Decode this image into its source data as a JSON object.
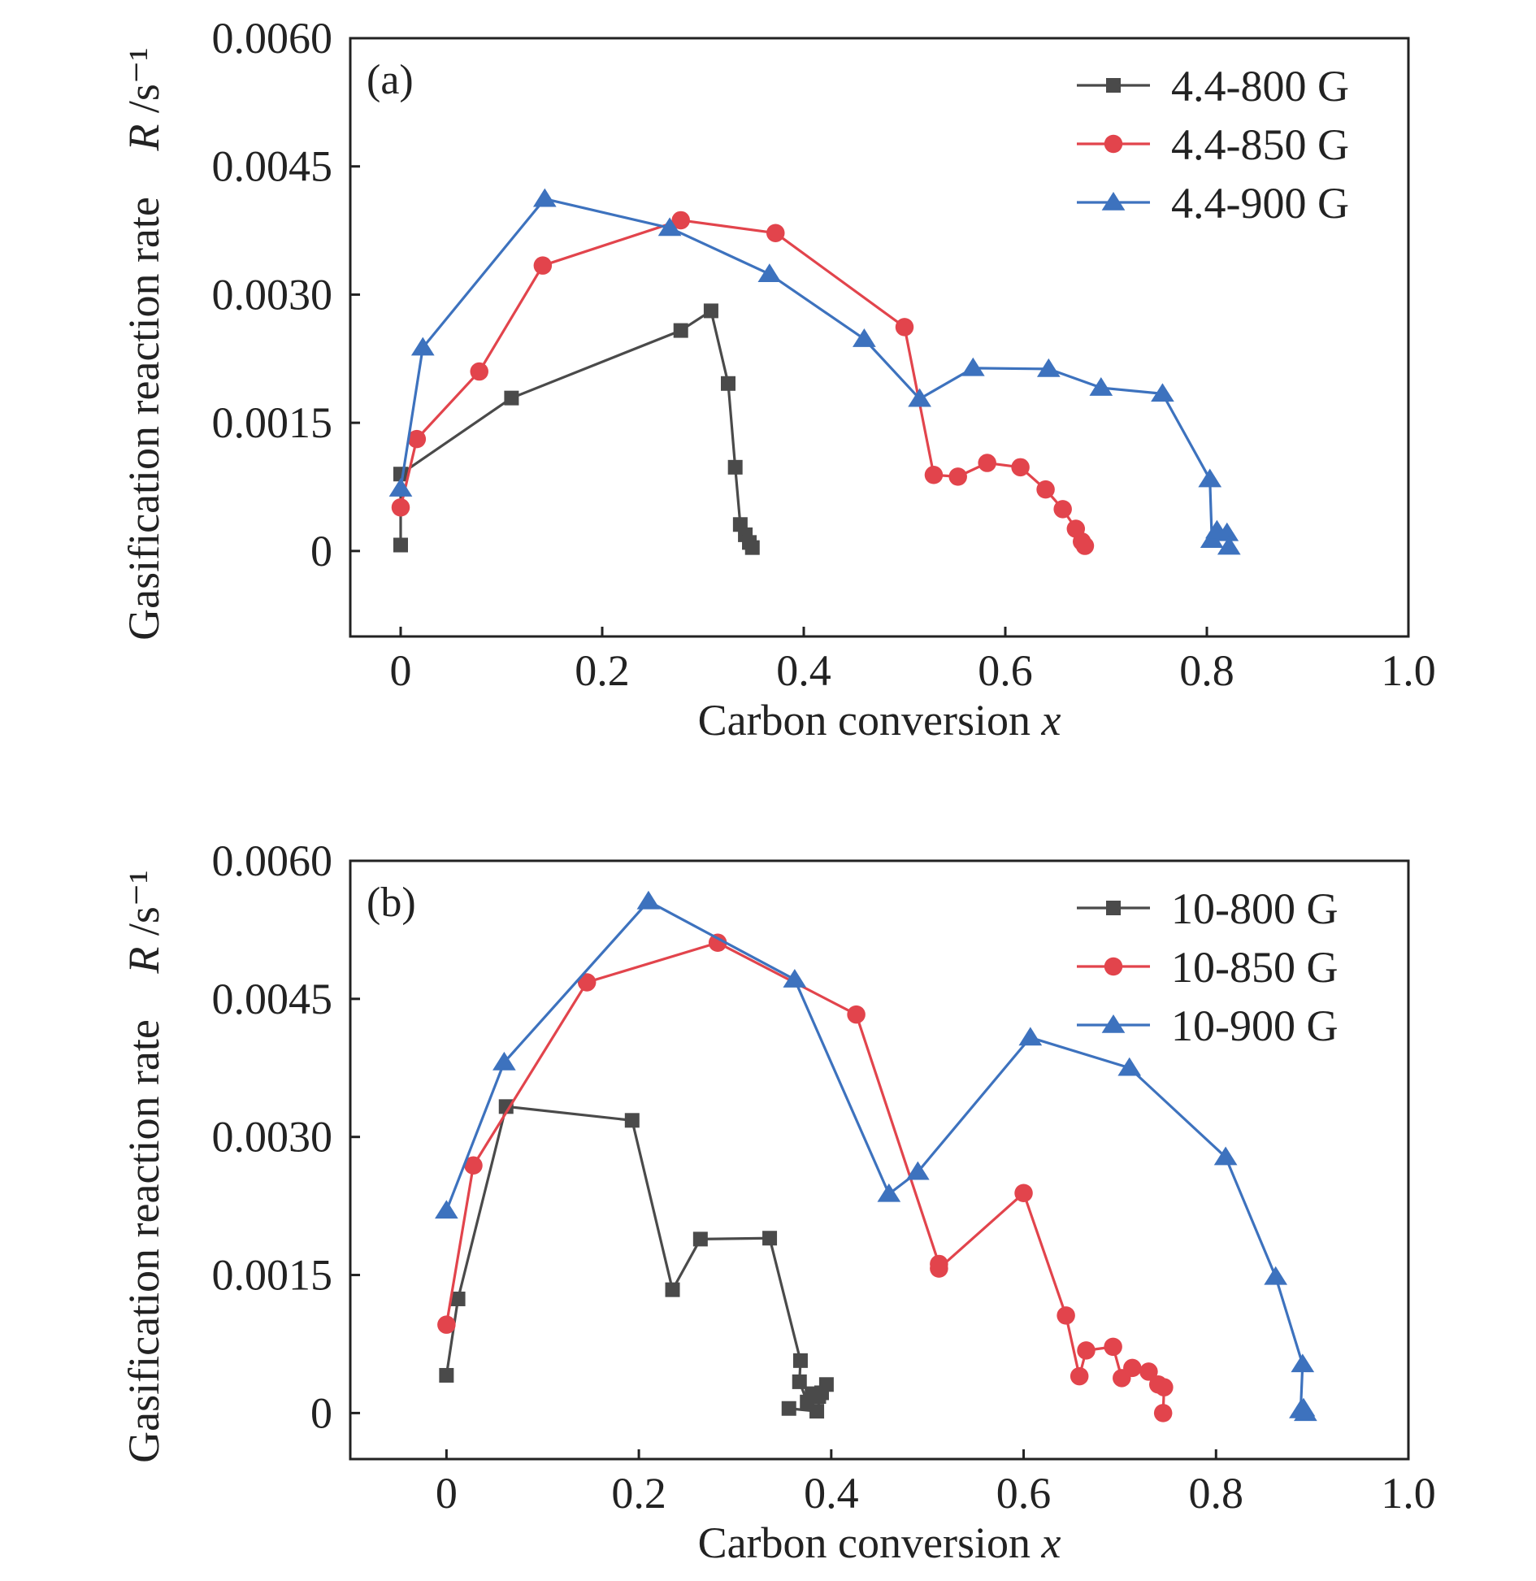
{
  "figure": {
    "y_axis_title": "Gasification reaction rate",
    "y_axis_unit": "R /s⁻¹",
    "x_axis_title": "Carbon conversion x"
  },
  "chart_data": [
    {
      "type": "line",
      "panel_label": "(a)",
      "xlabel": "Carbon conversion x",
      "ylabel": "Gasification reaction rate R /s⁻¹",
      "xlim": [
        -0.05,
        1.0
      ],
      "ylim": [
        -0.001,
        0.006
      ],
      "xticks": [
        0,
        0.2,
        0.4,
        0.6,
        0.8,
        1.0
      ],
      "xtick_labels": [
        "0",
        "0.2",
        "0.4",
        "0.6",
        "0.8",
        "1.0"
      ],
      "yticks": [
        0,
        0.0015,
        0.003,
        0.0045,
        0.006
      ],
      "ytick_labels": [
        "0",
        "0.0015",
        "0.0030",
        "0.0045",
        "0.0060"
      ],
      "legend_position": "top-right",
      "grid": false,
      "series": [
        {
          "name": "4.4-800 G",
          "color": "#4a4a4a",
          "marker": "square",
          "x": [
            0.0,
            0.0,
            0.11,
            0.278,
            0.308,
            0.325,
            0.332,
            0.337,
            0.342,
            0.346,
            0.349
          ],
          "y": [
            7e-05,
            0.0009,
            0.00179,
            0.00258,
            0.00281,
            0.00196,
            0.00098,
            0.00031,
            0.00019,
            0.0001,
            4e-05
          ]
        },
        {
          "name": "4.4-850 G",
          "color": "#e2444c",
          "marker": "circle",
          "x": [
            0.0,
            0.016,
            0.078,
            0.141,
            0.278,
            0.372,
            0.5,
            0.529,
            0.553,
            0.582,
            0.615,
            0.64,
            0.657,
            0.67,
            0.676,
            0.679
          ],
          "y": [
            0.00051,
            0.00131,
            0.0021,
            0.00334,
            0.00387,
            0.00372,
            0.00262,
            0.00089,
            0.00087,
            0.00103,
            0.00098,
            0.00072,
            0.00049,
            0.00026,
            0.00011,
            6e-05
          ]
        },
        {
          "name": "4.4-900 G",
          "color": "#3d72be",
          "marker": "triangle",
          "x": [
            0.0,
            0.022,
            0.143,
            0.267,
            0.366,
            0.46,
            0.515,
            0.568,
            0.643,
            0.695,
            0.756,
            0.803,
            0.805,
            0.81,
            0.82,
            0.822
          ],
          "y": [
            0.00073,
            0.00238,
            0.00412,
            0.00378,
            0.00324,
            0.00248,
            0.00178,
            0.00214,
            0.00213,
            0.00191,
            0.00184,
            0.00084,
            0.00013,
            0.00024,
            0.00021,
            5e-05
          ]
        }
      ]
    },
    {
      "type": "line",
      "panel_label": "(b)",
      "xlabel": "Carbon conversion x",
      "ylabel": "Gasification reaction rate R /s⁻¹",
      "xlim": [
        -0.1,
        1.0
      ],
      "ylim": [
        -0.0005,
        0.006
      ],
      "xticks": [
        0,
        0.2,
        0.4,
        0.6,
        0.8,
        1.0
      ],
      "xtick_labels": [
        "0",
        "0.2",
        "0.4",
        "0.6",
        "0.8",
        "1.0"
      ],
      "yticks": [
        0,
        0.0015,
        0.003,
        0.0045,
        0.006
      ],
      "ytick_labels": [
        "0",
        "0.0015",
        "0.0030",
        "0.0045",
        "0.0060"
      ],
      "legend_position": "top-right",
      "grid": false,
      "series": [
        {
          "name": "10-800 G",
          "color": "#4a4a4a",
          "marker": "square",
          "x": [
            0.0,
            0.012,
            0.062,
            0.193,
            0.235,
            0.264,
            0.336,
            0.368,
            0.367,
            0.375,
            0.38,
            0.387,
            0.395,
            0.39,
            0.385,
            0.356
          ],
          "y": [
            0.00041,
            0.00124,
            0.00333,
            0.00318,
            0.00134,
            0.00189,
            0.0019,
            0.00057,
            0.00034,
            0.00012,
            0.00021,
            0.00018,
            0.00031,
            0.00022,
            2e-05,
            5e-05
          ]
        },
        {
          "name": "10-850 G",
          "color": "#e2444c",
          "marker": "circle",
          "x": [
            0.0,
            0.028,
            0.146,
            0.282,
            0.426,
            0.512,
            0.512,
            0.6,
            0.644,
            0.658,
            0.665,
            0.693,
            0.702,
            0.713,
            0.73,
            0.74,
            0.746,
            0.745
          ],
          "y": [
            0.00096,
            0.00269,
            0.00468,
            0.00511,
            0.00433,
            0.00162,
            0.00157,
            0.00239,
            0.00106,
            0.0004,
            0.00068,
            0.00072,
            0.00038,
            0.00049,
            0.00045,
            0.00031,
            0.00028,
            0.0
          ]
        },
        {
          "name": "10-900 G",
          "color": "#3d72be",
          "marker": "triangle",
          "x": [
            0.0,
            0.06,
            0.21,
            0.362,
            0.46,
            0.49,
            0.607,
            0.71,
            0.81,
            0.862,
            0.89,
            0.888,
            0.891,
            0.893
          ],
          "y": [
            0.0022,
            0.00381,
            0.00556,
            0.00471,
            0.00238,
            0.00262,
            0.00408,
            0.00375,
            0.00278,
            0.00148,
            0.00053,
            3e-05,
            5e-05,
            0.0
          ]
        }
      ]
    }
  ]
}
